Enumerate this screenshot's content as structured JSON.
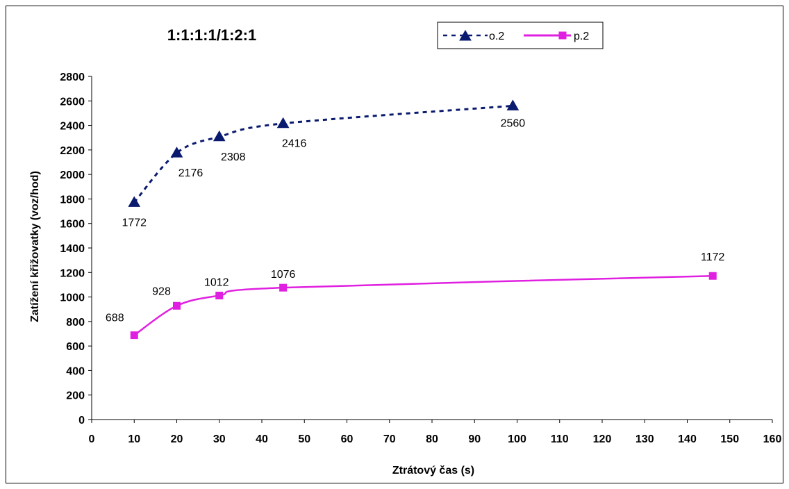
{
  "chart_data": {
    "type": "line",
    "title": "1:1:1:1/1:2:1",
    "xlabel": "Ztrátový čas (s)",
    "ylabel": "Zatížení křižovatky (voz/hod)",
    "xlim": [
      0,
      160
    ],
    "ylim": [
      0,
      2800
    ],
    "x_ticks": [
      0,
      10,
      20,
      30,
      40,
      50,
      60,
      70,
      80,
      90,
      100,
      110,
      120,
      130,
      140,
      150,
      160
    ],
    "y_ticks": [
      0,
      200,
      400,
      600,
      800,
      1000,
      1200,
      1400,
      1600,
      1800,
      2000,
      2200,
      2400,
      2600,
      2800
    ],
    "grid": false,
    "legend_position": "top-right",
    "series": [
      {
        "name": "o.2",
        "color": "#0a1a6e",
        "line_style": "dashed",
        "marker": "triangle",
        "x": [
          10,
          20,
          30,
          45,
          99
        ],
        "y": [
          1772,
          2176,
          2308,
          2416,
          2560
        ],
        "labels": [
          "1772",
          "2176",
          "2308",
          "2416",
          "2560"
        ]
      },
      {
        "name": "p.2",
        "color": "#e020e0",
        "line_style": "solid",
        "marker": "square",
        "x": [
          10,
          20,
          30,
          45,
          146
        ],
        "y": [
          688,
          928,
          1012,
          1076,
          1172
        ],
        "labels": [
          "688",
          "928",
          "1012",
          "1076",
          "1172"
        ]
      }
    ]
  }
}
